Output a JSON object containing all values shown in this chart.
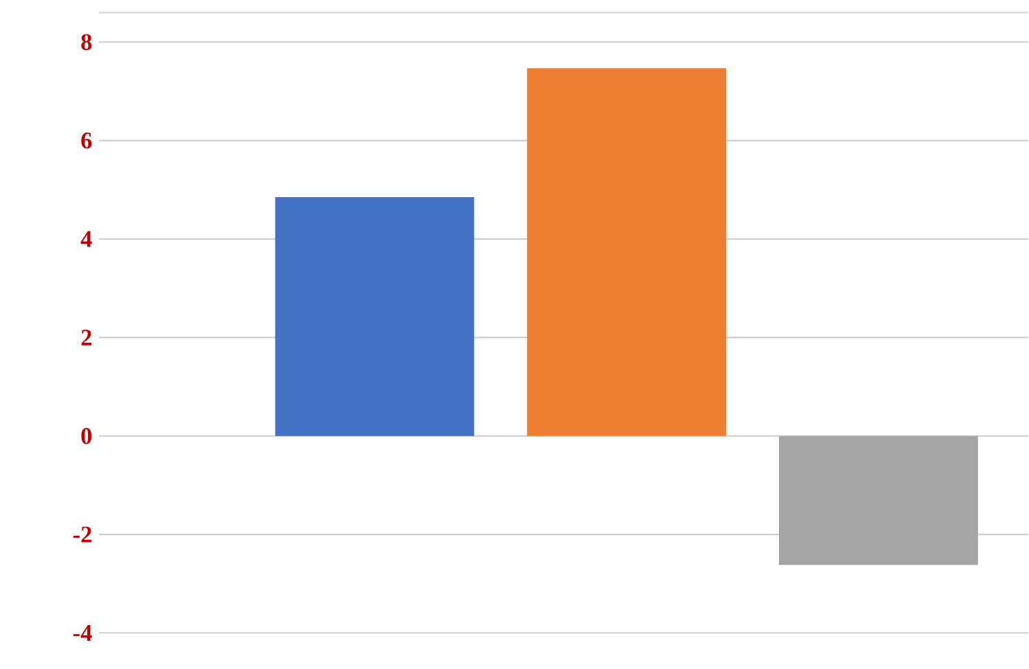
{
  "chart_data": {
    "type": "bar",
    "categories": [
      null,
      null,
      null
    ],
    "values": [
      4.85,
      7.47,
      -2.62
    ],
    "colors": [
      "#4472c4",
      "#ed7d31",
      "#a5a5a5"
    ],
    "ylim": [
      -4,
      8.6
    ],
    "yticks": [
      -4,
      -2,
      0,
      2,
      4,
      6,
      8
    ],
    "grid": "y"
  }
}
